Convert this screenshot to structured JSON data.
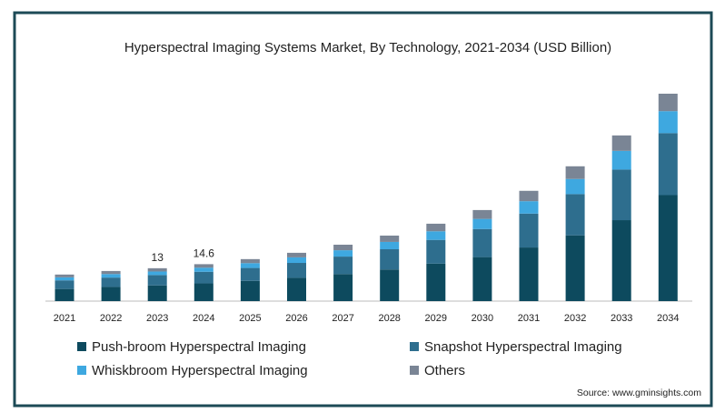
{
  "chart_data": {
    "type": "stacked_bar",
    "title": "Hyperspectral Imaging Systems Market, By Technology, 2021-2034 (USD Billion)",
    "categories": [
      "2021",
      "2022",
      "2023",
      "2024",
      "2025",
      "2026",
      "2027",
      "2028",
      "2029",
      "2030",
      "2031",
      "2032",
      "2033",
      "2034"
    ],
    "series": [
      {
        "name": "Push-broom Hyperspectral Imaging",
        "color": "#0d4a5e",
        "values": [
          4.8,
          5.6,
          6.2,
          7.0,
          8.0,
          9.2,
          10.7,
          12.5,
          14.8,
          17.4,
          21.2,
          26.0,
          32.0,
          41.9
        ]
      },
      {
        "name": "Snapshot Hyperspectral Imaging",
        "color": "#2e6e8e",
        "values": [
          3.4,
          3.7,
          4.1,
          4.6,
          5.1,
          5.9,
          6.9,
          8.0,
          9.4,
          11.1,
          13.4,
          16.3,
          20.0,
          24.5
        ]
      },
      {
        "name": "Whiskbroom Hyperspectral Imaging",
        "color": "#3ea8e0",
        "values": [
          1.2,
          1.4,
          1.4,
          1.6,
          1.9,
          2.2,
          2.5,
          2.9,
          3.4,
          4.0,
          4.9,
          6.0,
          7.4,
          8.7
        ]
      },
      {
        "name": "Others",
        "color": "#7a8595",
        "values": [
          1.1,
          1.2,
          1.3,
          1.4,
          1.6,
          1.8,
          2.2,
          2.5,
          3.0,
          3.5,
          4.1,
          5.0,
          6.1,
          6.9
        ]
      }
    ],
    "totals": [
      null,
      null,
      13,
      14.6,
      null,
      null,
      null,
      null,
      null,
      null,
      null,
      null,
      null,
      null
    ],
    "source": "Source: www.gminsights.com"
  }
}
